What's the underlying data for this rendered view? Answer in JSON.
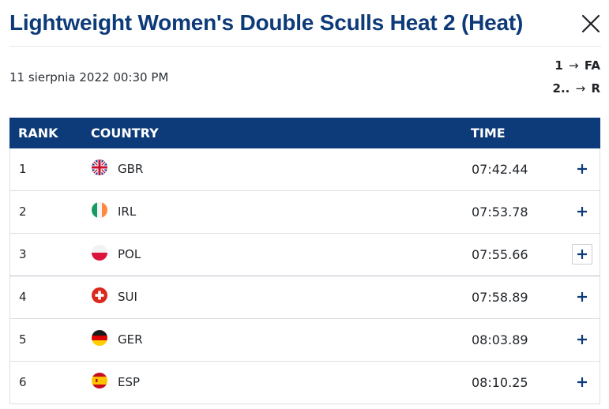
{
  "modal": {
    "title": "Lightweight Women's Double Sculls Heat 2 (Heat)",
    "date": "11 sierpnia 2022 00:30 PM",
    "progression": [
      {
        "places": "1",
        "arrow": "→",
        "target": "FA"
      },
      {
        "places": "2..",
        "arrow": "→",
        "target": "R"
      }
    ]
  },
  "table": {
    "headers": {
      "rank": "RANK",
      "country": "COUNTRY",
      "time": "TIME"
    },
    "rows": [
      {
        "rank": "1",
        "country": "GBR",
        "time": "07:42.44",
        "flag": "uk-flag-icon"
      },
      {
        "rank": "2",
        "country": "IRL",
        "time": "07:53.78",
        "flag": "ireland-flag-icon"
      },
      {
        "rank": "3",
        "country": "POL",
        "time": "07:55.66",
        "flag": "poland-flag-icon"
      },
      {
        "rank": "4",
        "country": "SUI",
        "time": "07:58.89",
        "flag": "switzerland-flag-icon"
      },
      {
        "rank": "5",
        "country": "GER",
        "time": "08:03.89",
        "flag": "germany-flag-icon"
      },
      {
        "rank": "6",
        "country": "ESP",
        "time": "08:10.25",
        "flag": "spain-flag-icon"
      }
    ]
  },
  "colors": {
    "header_bg": "#0d3a78",
    "title": "#0d3a78"
  },
  "icons": {
    "close": "close-icon",
    "expand": "plus-icon"
  }
}
